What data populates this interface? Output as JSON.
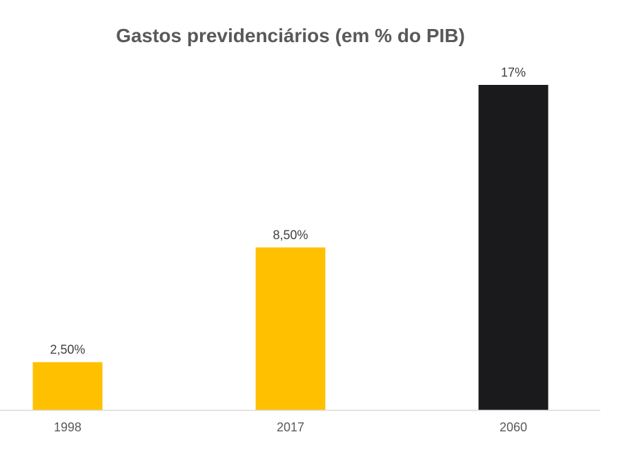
{
  "chart_data": {
    "type": "bar",
    "title": "Gastos previdenciários (em % do PIB)",
    "categories": [
      "1998",
      "2017",
      "2060"
    ],
    "values": [
      2.5,
      8.5,
      17
    ],
    "data_labels": [
      "2,50%",
      "8,50%",
      "17%"
    ],
    "colors": [
      "#FFC000",
      "#FFC000",
      "#1A1A1C"
    ],
    "ylim": [
      0,
      17
    ],
    "grid": false,
    "legend": "none",
    "axis_line_color": "#D9D9D9"
  }
}
